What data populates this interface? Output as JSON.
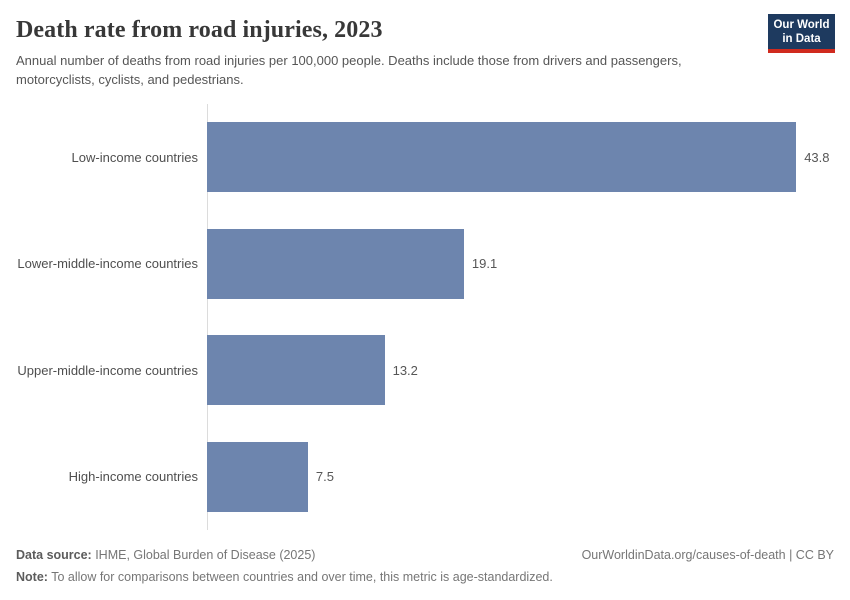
{
  "header": {
    "title": "Death rate from road injuries, 2023",
    "subtitle": "Annual number of deaths from road injuries per 100,000 people. Deaths include those from drivers and passengers, motorcyclists, cyclists, and pedestrians.",
    "logo": {
      "line1": "Our World",
      "line2": "in Data"
    }
  },
  "chart_data": {
    "type": "bar",
    "orientation": "horizontal",
    "title": "Death rate from road injuries, 2023",
    "categories": [
      "Low-income countries",
      "Lower-middle-income countries",
      "Upper-middle-income countries",
      "High-income countries"
    ],
    "values": [
      43.8,
      19.1,
      13.2,
      7.5
    ],
    "value_labels": [
      "43.8",
      "19.1",
      "13.2",
      "7.5"
    ],
    "xlabel": "",
    "ylabel": "",
    "xlim": [
      0,
      47.8
    ],
    "bar_color": "#6d85ae",
    "grid": false,
    "legend": false
  },
  "footer": {
    "source_label": "Data source:",
    "source_text": " IHME, Global Burden of Disease (2025)",
    "credit": "OurWorldinData.org/causes-of-death | CC BY",
    "note_label": "Note:",
    "note_text": " To allow for comparisons between countries and over time, this metric is age-standardized."
  }
}
